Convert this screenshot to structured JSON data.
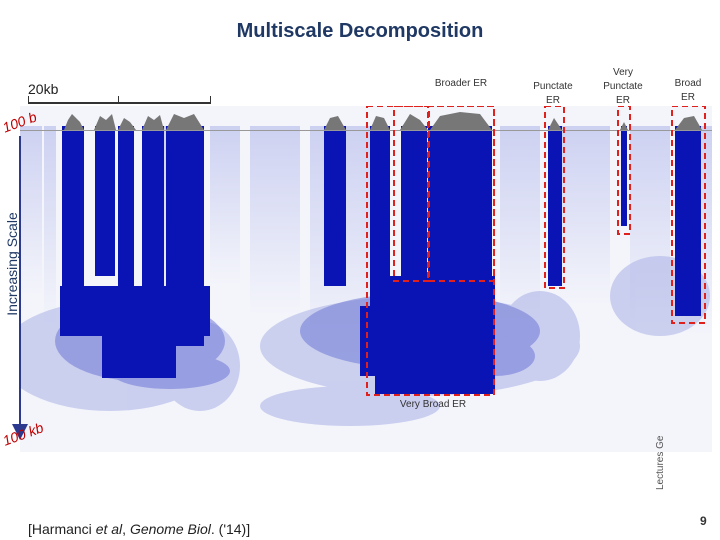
{
  "title": "Multiscale Decomposition",
  "scalebar_label": "20kb",
  "axis_label": "Increasing Scale",
  "scale_small": "100 b",
  "scale_large": "100 kb",
  "citation_prefix": "[Harmanci ",
  "citation_etal": "et al",
  "citation_mid": ", ",
  "citation_journal": "Genome Biol",
  "citation_suffix": ". ('14)]",
  "side_label": "Lectures Ge",
  "page_number": "9",
  "regions": {
    "broader_er": "Broader ER",
    "punctate_er": "Punctate ER",
    "very_punctate_er": "Very Punctate ER",
    "broad_er": "Broad ER",
    "very_broad_er": "Very Broad ER"
  },
  "colors": {
    "heatmap_blue": "#0a14b4",
    "box_red": "#e0201c",
    "title_navy": "#1f3864"
  }
}
